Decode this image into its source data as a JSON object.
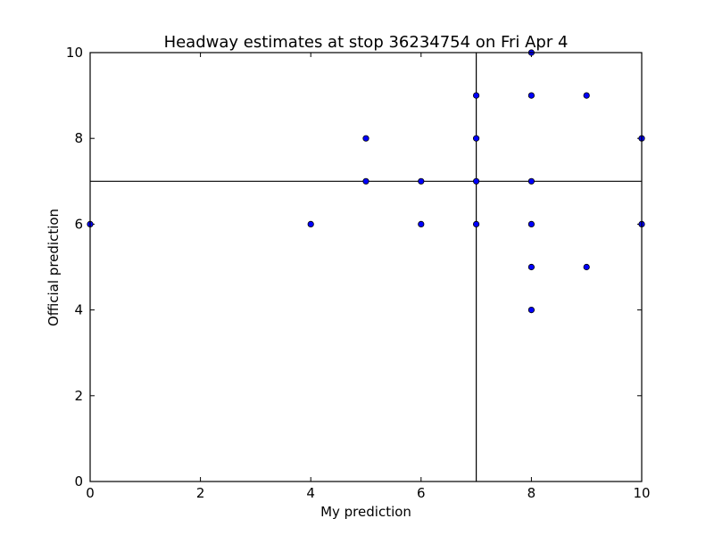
{
  "chart_data": {
    "type": "scatter",
    "title": "Headway estimates at stop 36234754 on Fri Apr 4",
    "x_label": "My prediction",
    "y_label": "Official prediction",
    "x": [
      0,
      4,
      5,
      5,
      6,
      6,
      7,
      7,
      7,
      7,
      8,
      8,
      8,
      8,
      8,
      8,
      9,
      9,
      10,
      10
    ],
    "values": [
      6,
      6,
      8,
      7,
      7,
      6,
      9,
      8,
      7,
      6,
      10,
      9,
      7,
      6,
      5,
      4,
      9,
      5,
      8,
      6
    ],
    "color": "#0000ff",
    "xlim": [
      0,
      10
    ],
    "ylim": [
      0,
      10
    ],
    "xticks": [
      0,
      2,
      4,
      6,
      8,
      10
    ],
    "yticks": [
      0,
      2,
      4,
      6,
      8,
      10
    ],
    "reference_lines": {
      "x": 7,
      "y": 7
    },
    "grid": false
  }
}
